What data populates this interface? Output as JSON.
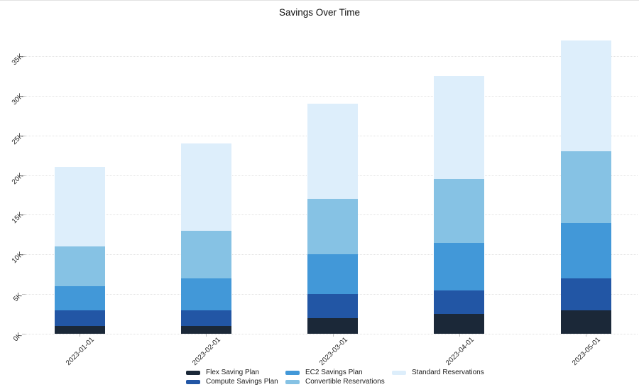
{
  "chart_data": {
    "type": "bar",
    "stacked": true,
    "title": "Savings Over Time",
    "categories": [
      "2023-01-01",
      "2023-02-01",
      "2023-03-01",
      "2023-04-01",
      "2023-05-01"
    ],
    "series": [
      {
        "name": "Flex Saving Plan",
        "color": "#1b2838",
        "values": [
          1000,
          1000,
          2000,
          2500,
          3000
        ]
      },
      {
        "name": "Compute Savings Plan",
        "color": "#2256a5",
        "values": [
          2000,
          2000,
          3000,
          3000,
          4000
        ]
      },
      {
        "name": "EC2 Savings Plan",
        "color": "#4298d8",
        "values": [
          3000,
          4000,
          5000,
          6000,
          7000
        ]
      },
      {
        "name": "Convertible Reservations",
        "color": "#86c2e4",
        "values": [
          5000,
          6000,
          7000,
          8000,
          9000
        ]
      },
      {
        "name": "Standard Reservations",
        "color": "#ddeefb",
        "values": [
          10000,
          11000,
          12000,
          13000,
          14000
        ]
      }
    ],
    "totals": [
      21000,
      24000,
      29000,
      32500,
      37000
    ],
    "xlabel": "",
    "ylabel": "",
    "y_ticks": [
      {
        "value": 0,
        "label": "0K"
      },
      {
        "value": 5000,
        "label": "5K"
      },
      {
        "value": 10000,
        "label": "10K"
      },
      {
        "value": 15000,
        "label": "15K"
      },
      {
        "value": 20000,
        "label": "20K"
      },
      {
        "value": 25000,
        "label": "25K"
      },
      {
        "value": 30000,
        "label": "30K"
      },
      {
        "value": 35000,
        "label": "35K"
      },
      {
        "value": 37500,
        "label": ""
      }
    ],
    "ylim": [
      0,
      38400
    ],
    "grid": "horizontal-dotted",
    "legend_position": "bottom",
    "colors": {
      "gridline": "#e2e2e2",
      "tick": "#bdbdbd",
      "tick_text": "#262626",
      "title_text": "#111111",
      "background": "#ffffff"
    }
  }
}
